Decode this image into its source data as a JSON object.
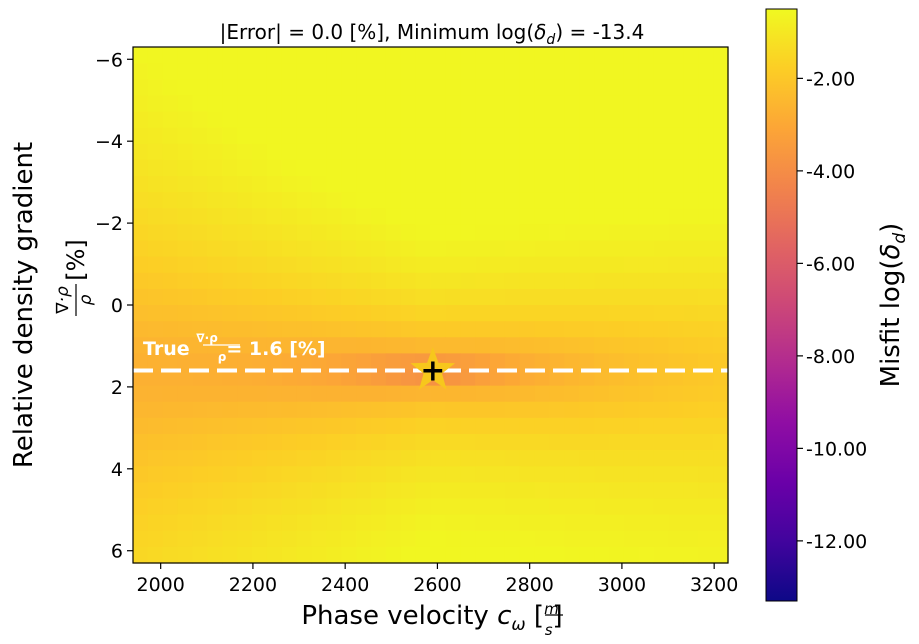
{
  "chart_data": {
    "type": "heatmap",
    "title_parts": [
      "|Error| = 0.0 [%], Minimum log(",
      "δ",
      "d",
      ") = -13.4"
    ],
    "xlabel_parts": [
      "Phase velocity ",
      "c",
      "ω",
      " [",
      "m",
      "s",
      "]"
    ],
    "ylabel_line1": "Relative density gradient",
    "ylabel_frac_num": "∇·ρ",
    "ylabel_frac_den": "ρ",
    "ylabel_unit": "[%]",
    "xlim": [
      1940,
      3230
    ],
    "ylim": [
      6.3,
      -6.3
    ],
    "y_inverted": true,
    "xticks": [
      2000,
      2200,
      2400,
      2600,
      2800,
      3000,
      3200
    ],
    "yticks": [
      -6,
      -4,
      -2,
      0,
      2,
      4,
      6
    ],
    "ytick_labels": [
      "−6",
      "−4",
      "−2",
      "0",
      "2",
      "4",
      "6"
    ],
    "grid": {
      "nx": 40,
      "ny": 32,
      "x_range": [
        1940,
        3230
      ],
      "y_range": [
        -6.3,
        6.3
      ]
    },
    "misfit_model": {
      "x0": 2590,
      "y0": 1.6,
      "ax": 0.7,
      "ay": 1.2,
      "base": -1.0,
      "floor": -13.4
    },
    "true_line": {
      "y": 1.6,
      "label_parts": [
        "True ",
        "∇·ρ",
        "ρ",
        "= 1.6 [%]"
      ],
      "color": "#ffffff"
    },
    "true_point": {
      "x": 2590,
      "y": 1.6,
      "color": "#f7c71c"
    },
    "estimate_point": {
      "x": 2590,
      "y": 1.6,
      "color": "#000000"
    },
    "colorbar": {
      "label_parts": [
        "Misfit log(",
        "δ",
        "d",
        ")"
      ],
      "range": [
        -13.3,
        -0.5
      ],
      "ticks": [
        -2,
        -4,
        -6,
        -8,
        -10,
        -12
      ],
      "tick_labels": [
        "-2.00",
        "-4.00",
        "-6.00",
        "-8.00",
        "-10.00",
        "-12.00"
      ],
      "colormap": "plasma"
    }
  }
}
